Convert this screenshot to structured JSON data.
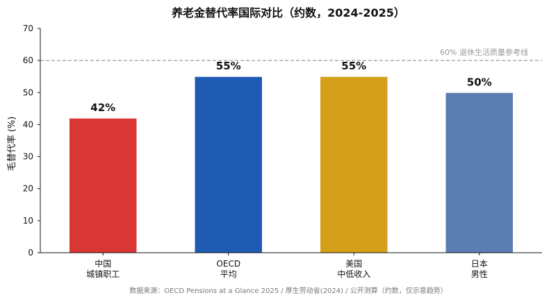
{
  "chart_data": {
    "type": "bar",
    "title": "养老金替代率国际对比（约数，2024-2025）",
    "ylabel": "毛替代率 (%)",
    "xlabel": "",
    "ylim": [
      0,
      70
    ],
    "yticks": [
      "0",
      "10",
      "20",
      "30",
      "40",
      "50",
      "60",
      "70"
    ],
    "grid": false,
    "categories": [
      [
        "中国",
        "城镇职工"
      ],
      [
        "OECD",
        "平均"
      ],
      [
        "美国",
        "中低收入"
      ],
      [
        "日本",
        "男性"
      ]
    ],
    "values": [
      42,
      55,
      55,
      50
    ],
    "value_labels": [
      "42%",
      "55%",
      "55%",
      "50%"
    ],
    "colors": [
      "#d93636",
      "#1f5bb3",
      "#d4a019",
      "#5b7db1"
    ],
    "reference_line": {
      "value": 60,
      "label": "60% 退休生活质量参考线",
      "color": "#999999",
      "style": "dashed"
    },
    "source": "数据来源：OECD Pensions at a Glance 2025 / 厚生劳动省(2024) / 公开测算（约数，仅示意趋势）"
  }
}
